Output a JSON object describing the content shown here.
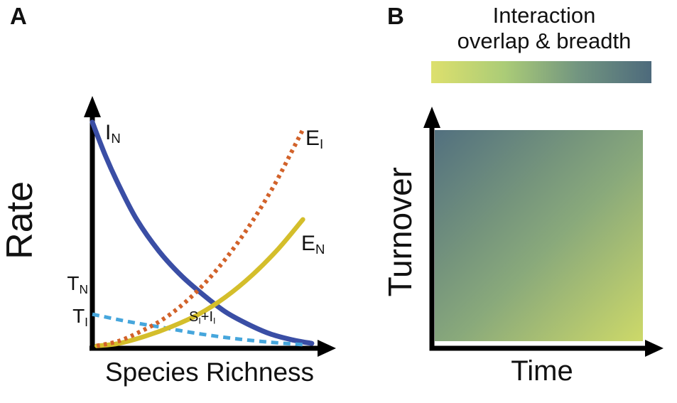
{
  "panelA": {
    "panel_label": "A",
    "ylabel": "Rate",
    "xlabel": "Species Richness",
    "yticks": {
      "tn": {
        "main": "T",
        "sub": "N"
      },
      "ti": {
        "main": "T",
        "sub": "I"
      }
    },
    "curve_labels": {
      "in": {
        "main": "I",
        "sub": "N"
      },
      "ei": {
        "main": "E",
        "sub": "I"
      },
      "en": {
        "main": "E",
        "sub": "N"
      },
      "si": {
        "p1": "S",
        "s1": "I",
        "p2": "+I",
        "s2": "I"
      }
    }
  },
  "panelB": {
    "panel_label": "B",
    "title_line1": "Interaction",
    "title_line2": "overlap & breadth",
    "ylabel": "Turnover",
    "xlabel": "Time"
  },
  "chart_data": [
    {
      "type": "line",
      "panel": "A",
      "title": "",
      "xlabel": "Species Richness",
      "ylabel": "Rate",
      "xlim": [
        0,
        1
      ],
      "ylim": [
        0,
        1
      ],
      "grid": false,
      "legend": "inline-labels",
      "yticks": [
        {
          "label": "T_N",
          "value": 0.26
        },
        {
          "label": "T_I",
          "value": 0.13
        }
      ],
      "series": [
        {
          "name": "I_N",
          "color": "#3a4ea5",
          "line_style": "solid",
          "line_width": 7,
          "x": [
            0,
            0.06,
            0.12,
            0.2,
            0.3,
            0.4,
            0.5,
            0.6,
            0.7,
            0.8,
            0.9,
            0.99
          ],
          "y": [
            0.93,
            0.79,
            0.67,
            0.53,
            0.4,
            0.3,
            0.22,
            0.15,
            0.1,
            0.06,
            0.035,
            0.02
          ]
        },
        {
          "name": "S_I+I_I",
          "color": "#46a6dc",
          "line_style": "dashed",
          "line_width": 5,
          "x": [
            0,
            0.16,
            0.32,
            0.48,
            0.64,
            0.8,
            0.95
          ],
          "y": [
            0.14,
            0.11,
            0.085,
            0.06,
            0.04,
            0.025,
            0.015
          ]
        },
        {
          "name": "E_N",
          "color": "#d4be2b",
          "line_style": "solid",
          "line_width": 6.5,
          "x": [
            0.02,
            0.12,
            0.24,
            0.36,
            0.48,
            0.6,
            0.72,
            0.84,
            0.95
          ],
          "y": [
            0.01,
            0.02,
            0.05,
            0.09,
            0.14,
            0.21,
            0.3,
            0.41,
            0.53
          ]
        },
        {
          "name": "E_I",
          "color": "#d2622a",
          "line_style": "dotted",
          "line_width": 6,
          "x": [
            0.02,
            0.12,
            0.22,
            0.32,
            0.42,
            0.52,
            0.62,
            0.72,
            0.82,
            0.9,
            0.95
          ],
          "y": [
            0.01,
            0.03,
            0.07,
            0.12,
            0.19,
            0.28,
            0.39,
            0.52,
            0.67,
            0.81,
            0.9
          ]
        }
      ]
    },
    {
      "type": "heatmap",
      "panel": "B",
      "title": "Interaction overlap & breadth",
      "xlabel": "Time",
      "ylabel": "Turnover",
      "colorbar": {
        "orientation": "horizontal",
        "stops": [
          "#dde06d",
          "#abcc77",
          "#729580",
          "#4d6a7c"
        ]
      },
      "gradient": {
        "top_left": "#52707f",
        "mid": "#89a97b",
        "bottom_right": "#cdd969"
      }
    }
  ]
}
